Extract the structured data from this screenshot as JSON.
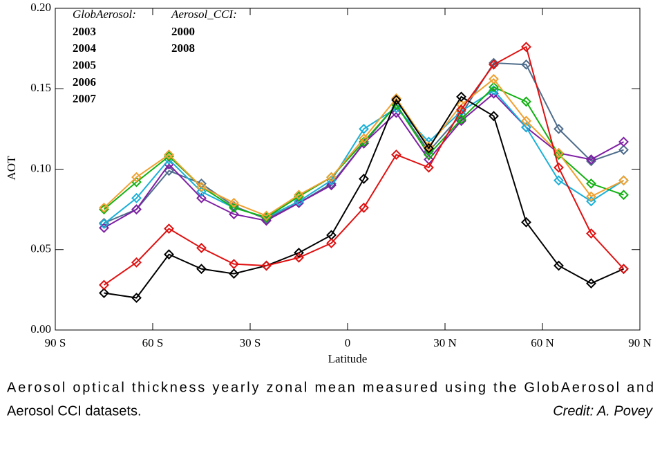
{
  "chart_data": {
    "type": "line",
    "y_label": "AOT",
    "x_label": "Latitude",
    "legend_titles": [
      "GlobAerosol:",
      "Aerosol_CCI:"
    ],
    "x": [
      -75,
      -65,
      -55,
      -45,
      -35,
      -25,
      -15,
      -5,
      5,
      15,
      25,
      35,
      45,
      55,
      65,
      75,
      85
    ],
    "xlim": [
      -90,
      90
    ],
    "xticks": [
      {
        "value": -90,
        "label": "90 S"
      },
      {
        "value": -60,
        "label": "60 S"
      },
      {
        "value": -30,
        "label": "30 S"
      },
      0,
      {
        "value": 30,
        "label": "30 N"
      },
      {
        "value": 60,
        "label": "60 N"
      },
      {
        "value": 90,
        "label": "90 N"
      }
    ],
    "ylim": [
      0,
      0.2
    ],
    "yticks": [
      {
        "value": 0,
        "label": "0.00"
      },
      0.05,
      {
        "value": 0.1,
        "label": "0.10"
      },
      0.15,
      {
        "value": 0.2,
        "label": "0.20"
      }
    ],
    "series": [
      {
        "name": "2003",
        "color": "#4f6d8c",
        "values": [
          0.0665,
          0.075,
          0.099,
          0.091,
          0.077,
          0.069,
          0.079,
          0.091,
          0.116,
          0.14,
          0.111,
          0.134,
          0.166,
          0.165,
          0.125,
          0.105,
          0.112
        ]
      },
      {
        "name": "2004",
        "color": "#7e1fa4",
        "values": [
          0.0635,
          0.075,
          0.103,
          0.082,
          0.072,
          0.068,
          0.079,
          0.09,
          0.116,
          0.135,
          0.106,
          0.13,
          0.147,
          0.126,
          0.11,
          0.106,
          0.117
        ]
      },
      {
        "name": "2005",
        "color": "#1ab0d8",
        "values": [
          0.066,
          0.082,
          0.106,
          0.086,
          0.076,
          0.07,
          0.08,
          0.093,
          0.125,
          0.138,
          0.117,
          0.136,
          0.149,
          0.126,
          0.093,
          0.08,
          0.093
        ]
      },
      {
        "name": "2006",
        "color": "#12b012",
        "values": [
          0.075,
          0.092,
          0.108,
          0.089,
          0.076,
          0.07,
          0.083,
          0.095,
          0.117,
          0.14,
          0.109,
          0.131,
          0.151,
          0.142,
          0.109,
          0.091,
          0.084
        ]
      },
      {
        "name": "2007",
        "color": "#f0a030",
        "values": [
          0.076,
          0.095,
          0.109,
          0.089,
          0.079,
          0.071,
          0.084,
          0.095,
          0.119,
          0.144,
          0.114,
          0.14,
          0.156,
          0.13,
          0.11,
          0.083,
          0.093
        ]
      },
      {
        "name": "2000",
        "color": "#000000",
        "values": [
          0.023,
          0.02,
          0.047,
          0.038,
          0.035,
          0.04,
          0.048,
          0.059,
          0.094,
          0.143,
          0.113,
          0.145,
          0.133,
          0.067,
          0.04,
          0.029,
          0.038
        ]
      },
      {
        "name": "2008",
        "color": "#e01010",
        "values": [
          0.028,
          0.042,
          0.063,
          0.051,
          0.041,
          0.04,
          0.045,
          0.054,
          0.076,
          0.109,
          0.101,
          0.137,
          0.165,
          0.176,
          0.101,
          0.06,
          0.038
        ]
      }
    ]
  },
  "caption": {
    "lines": [
      "Aerosol optical thickness yearly zonal mean measured using the GlobAerosol and",
      "Aerosol CCI  datasets."
    ],
    "credit": "Credit: A. Povey"
  }
}
